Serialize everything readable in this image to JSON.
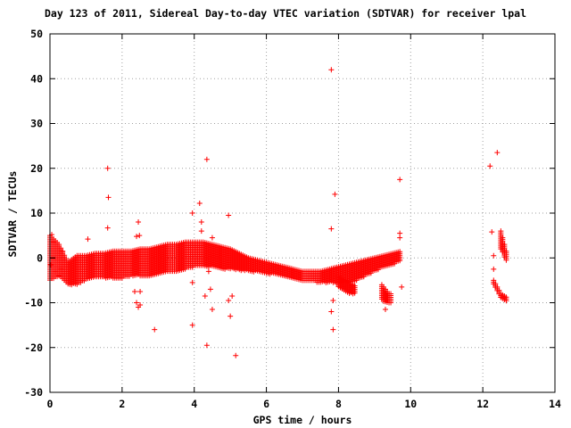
{
  "chart_data": {
    "type": "scatter",
    "title": "Day 123 of 2011, Sidereal Day-to-day VTEC variation (SDTVAR) for receiver lpal",
    "xlabel": "GPS time / hours",
    "ylabel": "SDTVAR / TECUs",
    "xlim": [
      0,
      14
    ],
    "ylim": [
      -30,
      50
    ],
    "xticks": [
      0,
      2,
      4,
      6,
      8,
      10,
      12,
      14
    ],
    "yticks": [
      -30,
      -20,
      -10,
      0,
      10,
      20,
      30,
      40,
      50
    ],
    "grid": true,
    "marker": "+",
    "color": "#ff0000",
    "bands": [
      {
        "x": [
          0.0,
          0.25,
          0.5,
          0.75,
          1.0,
          1.25,
          1.5,
          1.75,
          2.0,
          2.25,
          2.5,
          2.75,
          3.0,
          3.25,
          3.5,
          3.75,
          4.0,
          4.25,
          4.5,
          4.75,
          5.0,
          5.25,
          5.5,
          5.75,
          6.0,
          6.25,
          6.5,
          6.75,
          7.0,
          7.25,
          7.5,
          7.75,
          8.0,
          8.25,
          8.5,
          8.75,
          9.0,
          9.25,
          9.5,
          9.75
        ],
        "y_low": [
          -5,
          -4,
          -6,
          -6,
          -5,
          -4.5,
          -4.5,
          -4.5,
          -4.5,
          -4,
          -4,
          -4,
          -3.5,
          -3,
          -3,
          -2.5,
          -2,
          -2,
          -2,
          -2.5,
          -2.5,
          -2.8,
          -3,
          -3.2,
          -3.5,
          -3.8,
          -4,
          -4.5,
          -5,
          -5.3,
          -5.5,
          -5.5,
          -5.8,
          -5.5,
          -5,
          -4,
          -3,
          -2,
          -1.5,
          -0.5
        ],
        "y_high": [
          5,
          3,
          -1,
          0.5,
          0.5,
          1,
          1,
          1.5,
          1.5,
          1.5,
          2,
          2,
          2.5,
          3,
          3,
          3.5,
          3.5,
          3.5,
          3,
          2.5,
          2,
          1,
          0,
          -0.5,
          -1,
          -1.5,
          -2,
          -2.5,
          -3,
          -3,
          -3,
          -2.5,
          -2,
          -1.5,
          -1,
          -0.5,
          0,
          0.5,
          1,
          1.5
        ]
      },
      {
        "x": [
          8.0,
          8.1,
          8.2,
          8.3,
          8.4,
          8.5
        ],
        "y_low": [
          -6.5,
          -7,
          -7.5,
          -8,
          -8,
          -8
        ],
        "y_high": [
          -4,
          -4.5,
          -5,
          -5.5,
          -6,
          -6.5
        ]
      },
      {
        "x": [
          9.2,
          9.3,
          9.4,
          9.5
        ],
        "y_low": [
          -9.5,
          -10,
          -10,
          -10
        ],
        "y_high": [
          -6,
          -7,
          -8,
          -8
        ]
      },
      {
        "x": [
          12.3,
          12.4,
          12.5,
          12.6,
          12.7
        ],
        "y_low": [
          -6,
          -7.5,
          -9,
          -9.5,
          -10
        ],
        "y_high": [
          -5,
          -6.5,
          -8,
          -8.5,
          -9
        ]
      },
      {
        "x": [
          12.5,
          12.6,
          12.7
        ],
        "y_low": [
          2,
          0,
          -1.5
        ],
        "y_high": [
          6,
          3,
          0
        ]
      }
    ],
    "points": [
      {
        "x": 0.05,
        "y": 5.2
      },
      {
        "x": 0.1,
        "y": 3.5
      },
      {
        "x": 0.02,
        "y": -1.5
      },
      {
        "x": 0.15,
        "y": -3
      },
      {
        "x": 0.3,
        "y": -2.5
      },
      {
        "x": 0.35,
        "y": 1.5
      },
      {
        "x": 0.25,
        "y": -4
      },
      {
        "x": 1.05,
        "y": 4.2
      },
      {
        "x": 1.1,
        "y": -4.5
      },
      {
        "x": 1.6,
        "y": 20
      },
      {
        "x": 1.62,
        "y": 13.5
      },
      {
        "x": 1.6,
        "y": 6.7
      },
      {
        "x": 2.35,
        "y": -7.5
      },
      {
        "x": 2.4,
        "y": 4.8
      },
      {
        "x": 2.45,
        "y": 8
      },
      {
        "x": 2.48,
        "y": 5
      },
      {
        "x": 2.4,
        "y": -10
      },
      {
        "x": 2.45,
        "y": -11
      },
      {
        "x": 2.5,
        "y": -7.5
      },
      {
        "x": 2.5,
        "y": -10.5
      },
      {
        "x": 2.9,
        "y": -16
      },
      {
        "x": 3.95,
        "y": 10
      },
      {
        "x": 3.95,
        "y": -5.5
      },
      {
        "x": 3.95,
        "y": -15
      },
      {
        "x": 4.15,
        "y": 12.2
      },
      {
        "x": 4.2,
        "y": 8
      },
      {
        "x": 4.2,
        "y": 6
      },
      {
        "x": 4.3,
        "y": -8.5
      },
      {
        "x": 4.35,
        "y": 22
      },
      {
        "x": 4.4,
        "y": -3
      },
      {
        "x": 4.45,
        "y": -7
      },
      {
        "x": 4.5,
        "y": -11.5
      },
      {
        "x": 4.5,
        "y": 4.5
      },
      {
        "x": 4.35,
        "y": -19.5
      },
      {
        "x": 4.95,
        "y": 9.5
      },
      {
        "x": 4.95,
        "y": -9.5
      },
      {
        "x": 5.0,
        "y": -13
      },
      {
        "x": 5.05,
        "y": -8.5
      },
      {
        "x": 5.15,
        "y": -21.8
      },
      {
        "x": 7.8,
        "y": 42
      },
      {
        "x": 7.9,
        "y": 14.2
      },
      {
        "x": 7.8,
        "y": 6.5
      },
      {
        "x": 7.85,
        "y": -9.5
      },
      {
        "x": 7.8,
        "y": -12
      },
      {
        "x": 7.85,
        "y": -16
      },
      {
        "x": 9.3,
        "y": -11.5
      },
      {
        "x": 9.7,
        "y": 17.5
      },
      {
        "x": 9.7,
        "y": 5.5
      },
      {
        "x": 9.7,
        "y": 4.5
      },
      {
        "x": 9.75,
        "y": -6.5
      },
      {
        "x": 12.2,
        "y": 20.5
      },
      {
        "x": 12.4,
        "y": 23.5
      },
      {
        "x": 12.25,
        "y": 5.8
      },
      {
        "x": 12.3,
        "y": -2.5
      },
      {
        "x": 12.3,
        "y": 0.5
      }
    ]
  }
}
